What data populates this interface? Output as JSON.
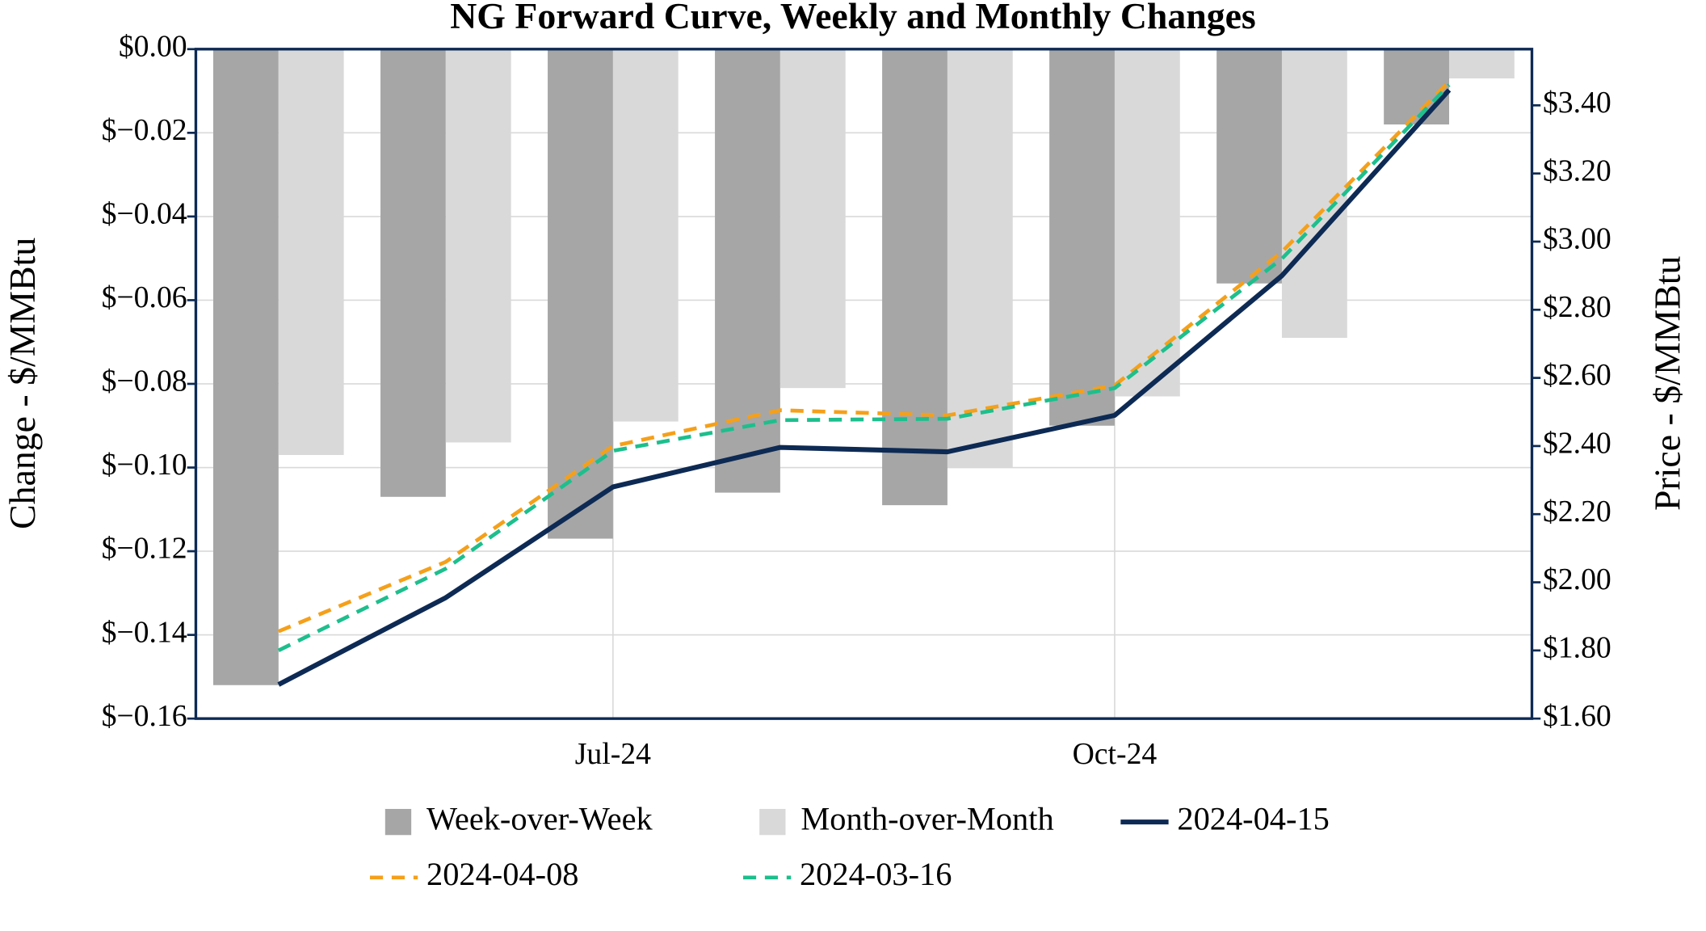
{
  "chart_data": {
    "type": "bar",
    "title": "NG Forward Curve, Weekly and Monthly Changes",
    "y_label": "Change - $/MMBtu",
    "y2_label": "Price - $/MMBtu",
    "categories": [
      null,
      null,
      "Jul-24",
      null,
      null,
      "Oct-24",
      null,
      null
    ],
    "series": [
      {
        "name": "Week-over-Week",
        "type": "bar",
        "color": "#a6a6a6",
        "values": [
          -0.152,
          -0.107,
          -0.117,
          -0.106,
          -0.109,
          -0.09,
          -0.056,
          -0.018
        ]
      },
      {
        "name": "Month-over-Month",
        "type": "bar",
        "color": "#d9d9d9",
        "values": [
          -0.097,
          -0.094,
          -0.089,
          -0.081,
          -0.1,
          -0.083,
          -0.069,
          -0.007
        ]
      },
      {
        "name": "2024-04-15",
        "type": "line",
        "axis": "y2",
        "color": "#0d2a54",
        "dashed": false,
        "values": [
          1.7,
          1.955,
          2.28,
          2.396,
          2.383,
          2.49,
          2.9,
          3.445
        ]
      },
      {
        "name": "2024-04-08",
        "type": "line",
        "axis": "y2",
        "color": "#f5a01a",
        "dashed": true,
        "values": [
          1.856,
          2.06,
          2.4,
          2.505,
          2.49,
          2.578,
          2.97,
          3.47
        ]
      },
      {
        "name": "2024-03-16",
        "type": "line",
        "axis": "y2",
        "color": "#1dbf8c",
        "dashed": true,
        "values": [
          1.8,
          2.04,
          2.386,
          2.476,
          2.48,
          2.57,
          2.95,
          3.46
        ]
      }
    ],
    "ylim": [
      -0.16,
      0
    ],
    "yticks": [
      {
        "value": 0,
        "label": "$0.00"
      },
      {
        "value": -0.02,
        "label": "$−0.02"
      },
      {
        "value": -0.04,
        "label": "$−0.04"
      },
      {
        "value": -0.06,
        "label": "$−0.06"
      },
      {
        "value": -0.08,
        "label": "$−0.08"
      },
      {
        "value": -0.1,
        "label": "$−0.10"
      },
      {
        "value": -0.12,
        "label": "$−0.12"
      },
      {
        "value": -0.14,
        "label": "$−0.14"
      },
      {
        "value": -0.16,
        "label": "$−0.16"
      }
    ],
    "y2lim": [
      1.6,
      3.565
    ],
    "y2ticks": [
      {
        "value": 1.6,
        "label": "$1.60"
      },
      {
        "value": 1.8,
        "label": "$1.80"
      },
      {
        "value": 2,
        "label": "$2.00"
      },
      {
        "value": 2.2,
        "label": "$2.20"
      },
      {
        "value": 2.4,
        "label": "$2.40"
      },
      {
        "value": 2.6,
        "label": "$2.60"
      },
      {
        "value": 2.8,
        "label": "$2.80"
      },
      {
        "value": 3,
        "label": "$3.00"
      },
      {
        "value": 3.2,
        "label": "$3.20"
      },
      {
        "value": 3.4,
        "label": "$3.40"
      }
    ],
    "grid": true,
    "legend": "bottom"
  }
}
